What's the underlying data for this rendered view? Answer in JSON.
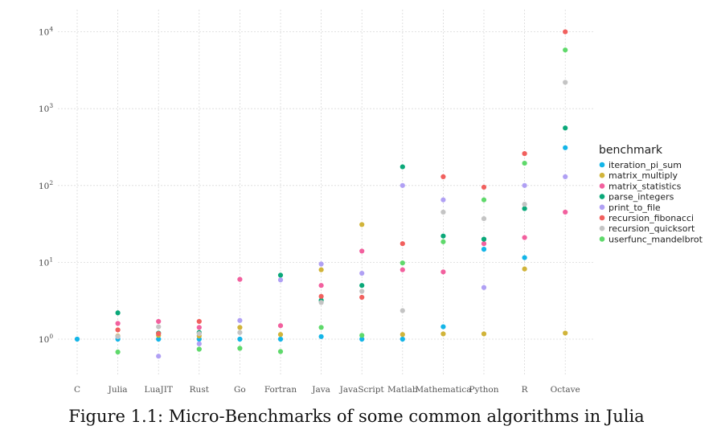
{
  "caption": "Figure 1.1: Micro-Benchmarks of some common algorithms in Julia",
  "colors": {
    "iteration_pi_sum": "#13b5e8",
    "matrix_multiply": "#d1b43a",
    "matrix_statistics": "#f2609e",
    "parse_integers": "#0aa879",
    "print_to_file": "#b0a0f4",
    "recursion_fibonacci": "#f1605e",
    "recursion_quicksort": "#c4c4c4",
    "userfunc_mandelbrot": "#5fd96b",
    "grid": "#d9d9d9"
  },
  "chart_data": {
    "type": "scatter",
    "y_scale": "log10",
    "ylim": [
      0.3,
      13000
    ],
    "y_ticks": [
      {
        "base": "10",
        "exp": "0",
        "value": 1
      },
      {
        "base": "10",
        "exp": "1",
        "value": 10
      },
      {
        "base": "10",
        "exp": "2",
        "value": 100
      },
      {
        "base": "10",
        "exp": "3",
        "value": 1000
      },
      {
        "base": "10",
        "exp": "4",
        "value": 10000
      }
    ],
    "categories": [
      "C",
      "Julia",
      "LuaJIT",
      "Rust",
      "Go",
      "Fortran",
      "Java",
      "JavaScript",
      "Matlab",
      "Mathematica",
      "Python",
      "R",
      "Octave"
    ],
    "legend_title": "benchmark",
    "legend_position": "right",
    "grid": true,
    "series": [
      {
        "name": "iteration_pi_sum",
        "values": [
          1,
          1,
          1,
          1,
          1,
          1,
          1.08,
          1,
          1,
          1.45,
          14.8,
          11.5,
          310
        ]
      },
      {
        "name": "matrix_multiply",
        "values": [
          null,
          1.1,
          1.12,
          1.1,
          1.42,
          1.15,
          8,
          31,
          1.15,
          1.17,
          1.17,
          8.2,
          1.2
        ]
      },
      {
        "name": "matrix_statistics",
        "values": [
          null,
          1.6,
          1.7,
          1.42,
          6,
          1.5,
          5,
          14,
          8,
          7.5,
          17.5,
          21,
          45
        ]
      },
      {
        "name": "parse_integers",
        "values": [
          null,
          2.2,
          1.2,
          1.22,
          null,
          6.8,
          3.2,
          5,
          175,
          22,
          20,
          50,
          560
        ]
      },
      {
        "name": "print_to_file",
        "values": [
          null,
          1.08,
          0.6,
          0.87,
          1.75,
          5.9,
          9.5,
          7.2,
          100,
          65,
          4.7,
          100,
          130
        ]
      },
      {
        "name": "recursion_fibonacci",
        "values": [
          null,
          1.32,
          1.18,
          1.7,
          null,
          null,
          3.6,
          3.5,
          17.5,
          130,
          95,
          260,
          10000
        ]
      },
      {
        "name": "recursion_quicksort",
        "values": [
          null,
          1.08,
          1.45,
          1.18,
          1.22,
          null,
          3,
          4.2,
          2.35,
          45,
          37,
          57,
          2200
        ]
      },
      {
        "name": "userfunc_mandelbrot",
        "values": [
          null,
          0.68,
          null,
          0.74,
          0.76,
          0.69,
          1.42,
          1.12,
          9.8,
          18.5,
          65,
          195,
          5800
        ]
      }
    ]
  }
}
